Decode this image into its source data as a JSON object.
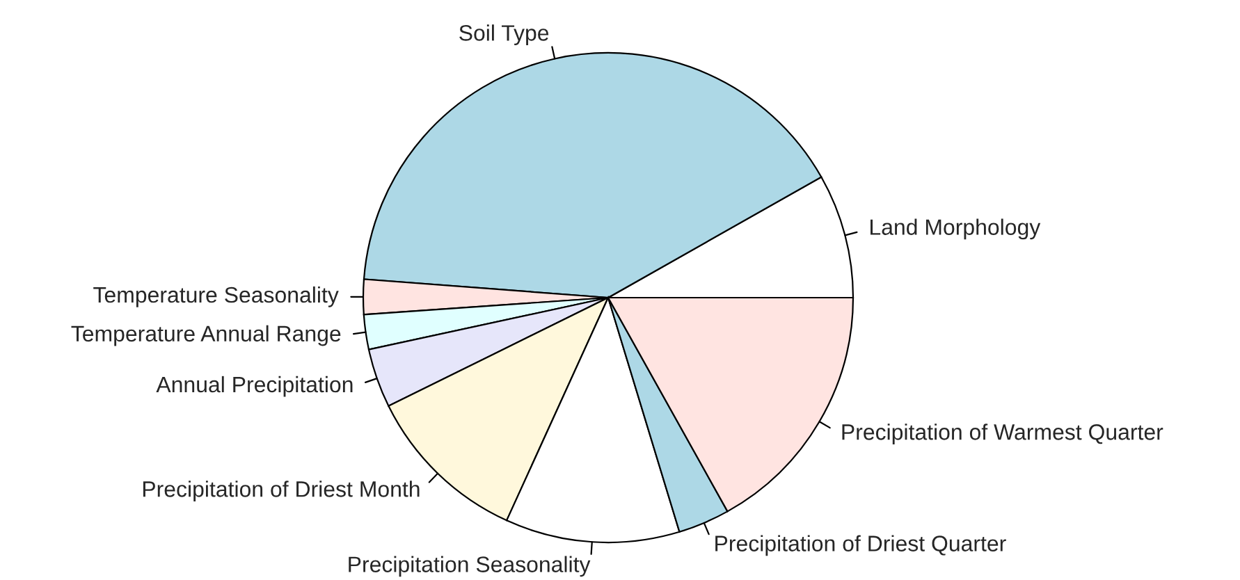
{
  "chart_data": {
    "type": "pie",
    "categories": [
      "Land Morphology",
      "Soil Type",
      "Temperature Seasonality",
      "Temperature Annual Range",
      "Annual Precipitation",
      "Precipitation of Driest Month",
      "Precipitation Seasonality",
      "Precipitation of Driest Quarter",
      "Precipitation of Warmest Quarter"
    ],
    "values": [
      8.2,
      40.6,
      2.3,
      2.3,
      3.9,
      10.9,
      11.5,
      3.4,
      16.9
    ],
    "colors": [
      "#ffffff",
      "#add8e6",
      "#ffe4e1",
      "#e0ffff",
      "#e6e6fa",
      "#fff8dc",
      "#ffffff",
      "#add8e6",
      "#ffe4e1"
    ]
  }
}
